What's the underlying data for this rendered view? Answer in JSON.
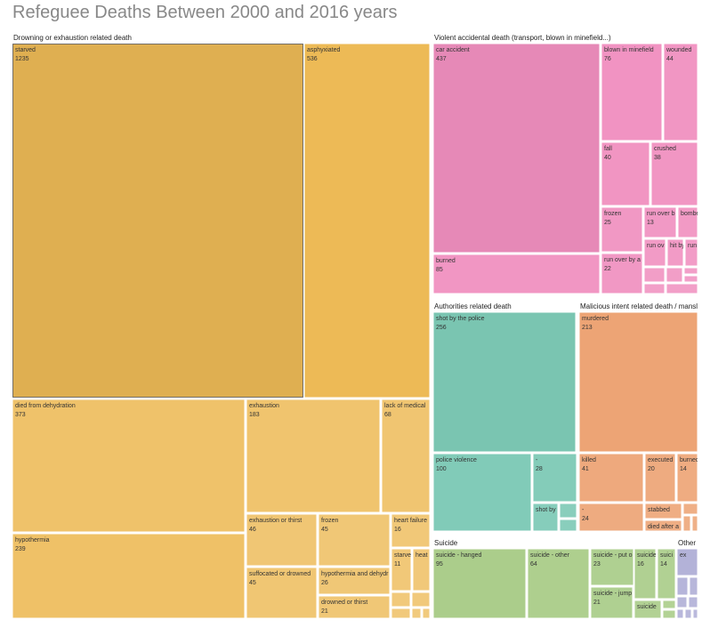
{
  "chart_data": {
    "type": "treemap",
    "title": "Refeguee Deaths Between 2000 and 2016 years",
    "groups": [
      {
        "name": "Drowning or exhaustion related death",
        "color": "#EDBA56",
        "items": [
          {
            "label": "starved",
            "value": 1235
          },
          {
            "label": "asphyxiated",
            "value": 536
          },
          {
            "label": "died from dehydration",
            "value": 373
          },
          {
            "label": "exhaustion",
            "value": 183
          },
          {
            "label": "lack of medical",
            "value": 68
          },
          {
            "label": "hypothermia",
            "value": 239
          },
          {
            "label": "exhaustion or thirst",
            "value": 46
          },
          {
            "label": "frozen",
            "value": 45
          },
          {
            "label": "heart failure",
            "value": 16
          },
          {
            "label": "suffocated or drowned",
            "value": 45
          },
          {
            "label": "hypothermia and dehydr",
            "value": 26
          },
          {
            "label": "starve",
            "value": 11
          },
          {
            "label": "heat",
            "value": null
          },
          {
            "label": "drowned or thirst",
            "value": 21
          },
          {
            "label": "",
            "value": null
          },
          {
            "label": "",
            "value": null
          },
          {
            "label": "",
            "value": null
          },
          {
            "label": "",
            "value": null
          },
          {
            "label": "",
            "value": null
          }
        ]
      },
      {
        "name": "Violent accidental death (transport, blown in minefield...)",
        "color": "#F08FBF",
        "items": [
          {
            "label": "car accident",
            "value": 437
          },
          {
            "label": "blown in minefield",
            "value": 76
          },
          {
            "label": "wounded",
            "value": 44
          },
          {
            "label": "fall",
            "value": 40
          },
          {
            "label": "crushed",
            "value": 38
          },
          {
            "label": "frozen",
            "value": 25
          },
          {
            "label": "run over b",
            "value": 13
          },
          {
            "label": "bombe",
            "value": null
          },
          {
            "label": "run ov",
            "value": null
          },
          {
            "label": "hit by",
            "value": null
          },
          {
            "label": "run",
            "value": null
          },
          {
            "label": "burned",
            "value": 85
          },
          {
            "label": "run over by a",
            "value": 22
          },
          {
            "label": "",
            "value": null
          },
          {
            "label": "",
            "value": null
          },
          {
            "label": "",
            "value": null
          },
          {
            "label": "",
            "value": null
          },
          {
            "label": "",
            "value": null
          },
          {
            "label": "",
            "value": null
          }
        ]
      },
      {
        "name": "Authorities related death",
        "color": "#7CC9B5",
        "items": [
          {
            "label": "shot by the police",
            "value": 256
          },
          {
            "label": "police violence",
            "value": 100
          },
          {
            "label": "-",
            "value": 28
          },
          {
            "label": "shot by",
            "value": null
          },
          {
            "label": "",
            "value": null
          },
          {
            "label": "",
            "value": null
          }
        ]
      },
      {
        "name": "Malicious intent related death / mansl",
        "color": "#EDA475",
        "items": [
          {
            "label": "murdered",
            "value": 213
          },
          {
            "label": "killed",
            "value": 41
          },
          {
            "label": "executed",
            "value": 20
          },
          {
            "label": "burned",
            "value": 14
          },
          {
            "label": "-",
            "value": 24
          },
          {
            "label": "stabbed",
            "value": null
          },
          {
            "label": "died after a",
            "value": null
          },
          {
            "label": "",
            "value": null
          },
          {
            "label": "",
            "value": null
          },
          {
            "label": "",
            "value": null
          }
        ]
      },
      {
        "name": "Suicide",
        "color": "#ABCD8B",
        "items": [
          {
            "label": "suicide - hanged",
            "value": 95
          },
          {
            "label": "suicide - other",
            "value": 64
          },
          {
            "label": "suicide - put o",
            "value": 23
          },
          {
            "label": "suicide",
            "value": 16
          },
          {
            "label": "suici",
            "value": 14
          },
          {
            "label": "suicide - jump",
            "value": 21
          },
          {
            "label": "suicide",
            "value": null
          },
          {
            "label": "",
            "value": null
          },
          {
            "label": "",
            "value": null
          }
        ]
      },
      {
        "name": "Other",
        "color": "#B3B2D8",
        "items": [
          {
            "label": "ex",
            "value": null
          },
          {
            "label": "",
            "value": null
          },
          {
            "label": "",
            "value": null
          },
          {
            "label": "",
            "value": null
          },
          {
            "label": "",
            "value": null
          },
          {
            "label": "",
            "value": null
          },
          {
            "label": "",
            "value": null
          },
          {
            "label": "",
            "value": null
          }
        ]
      }
    ]
  }
}
